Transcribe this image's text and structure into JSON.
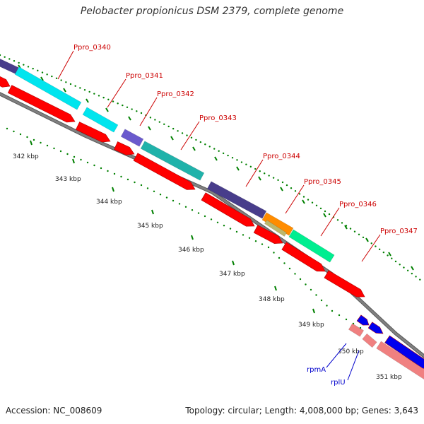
{
  "title": "Pelobacter propionicus DSM 2379, complete genome",
  "footer": {
    "accession": "Accession: NC_008609",
    "summary": "Topology: circular; Length: 4,008,000 bp; Genes: 3,643"
  },
  "kbp_labels": [
    "342 kbp",
    "343 kbp",
    "344 kbp",
    "345 kbp",
    "346 kbp",
    "347 kbp",
    "348 kbp",
    "349 kbp",
    "350 kbp",
    "351 kbp"
  ],
  "gene_labels": [
    {
      "text": "Ppro_0340",
      "color": "#cc0000"
    },
    {
      "text": "Ppro_0341",
      "color": "#cc0000"
    },
    {
      "text": "Ppro_0342",
      "color": "#cc0000"
    },
    {
      "text": "Ppro_0343",
      "color": "#cc0000"
    },
    {
      "text": "Ppro_0344",
      "color": "#cc0000"
    },
    {
      "text": "Ppro_0345",
      "color": "#cc0000"
    },
    {
      "text": "Ppro_0346",
      "color": "#cc0000"
    },
    {
      "text": "Ppro_0347",
      "color": "#cc0000"
    },
    {
      "text": "rpmA",
      "color": "#0000cc"
    },
    {
      "text": "rplU",
      "color": "#0000cc"
    }
  ],
  "colors": {
    "cds_red": "#ff0000",
    "cds_pink": "#f08080",
    "cds_blue": "#0000ee",
    "backbone": "#808080",
    "tick_green": "#008000",
    "cog_cyan": "#00e5ee",
    "cog_navy": "#483d8b",
    "cog_slate": "#6a5acd",
    "cog_teal": "#20b2aa",
    "cog_orange": "#ff8c00",
    "cog_khaki": "#bdb76b",
    "cog_spring": "#00ee90"
  }
}
